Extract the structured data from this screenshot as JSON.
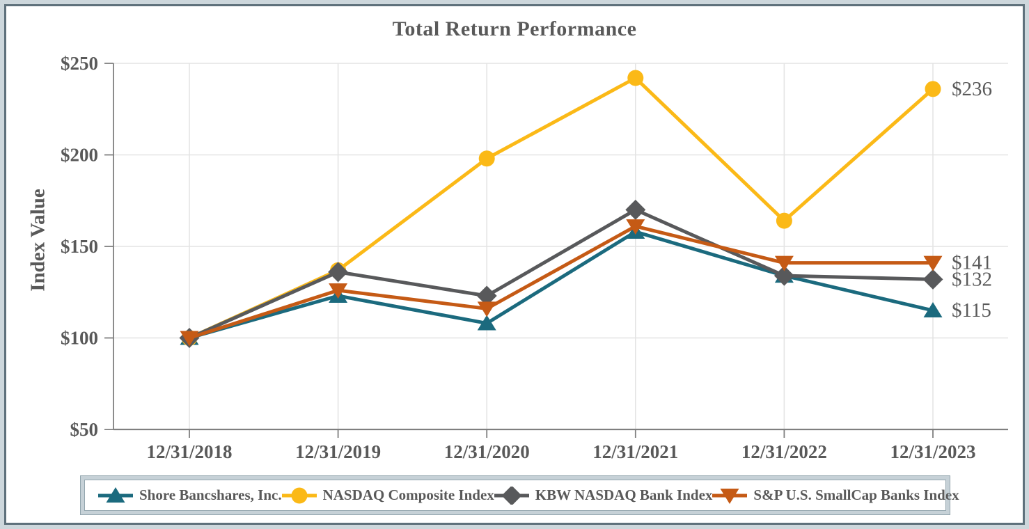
{
  "chart_data": {
    "type": "line",
    "title": "Total Return Performance",
    "ylabel": "Index Value",
    "xlabel": "",
    "x_tick_labels": [
      "12/31/2018",
      "12/31/2019",
      "12/31/2020",
      "12/31/2021",
      "12/31/2022",
      "12/31/2023"
    ],
    "y_tick_labels": [
      "$250",
      "$200",
      "$150",
      "$100",
      "$50"
    ],
    "y_tick_values": [
      250,
      200,
      150,
      100,
      50
    ],
    "ylim": [
      50,
      250
    ],
    "grid": true,
    "legend_position": "bottom",
    "text_color": "#595959",
    "axis_color": "#7F7F7F",
    "grid_color": "#E4E4E4",
    "series": [
      {
        "name": "Shore Bancshares, Inc.",
        "marker": "triangle-up",
        "color": "#1B6A7E",
        "values": [
          100,
          123,
          108,
          158,
          134,
          115
        ],
        "end_label": "$115"
      },
      {
        "name": "NASDAQ Composite Index",
        "marker": "circle",
        "color": "#FBB917",
        "values": [
          100,
          137,
          198,
          242,
          164,
          236
        ],
        "end_label": "$236"
      },
      {
        "name": "KBW NASDAQ Bank Index",
        "marker": "diamond",
        "color": "#58595B",
        "values": [
          100,
          136,
          123,
          170,
          134,
          132
        ],
        "end_label": "$132"
      },
      {
        "name": "S&P U.S. SmallCap Banks Index",
        "marker": "triangle-down",
        "color": "#C55A15",
        "values": [
          100,
          126,
          116,
          161,
          141,
          141
        ],
        "end_label": "$141"
      }
    ]
  }
}
